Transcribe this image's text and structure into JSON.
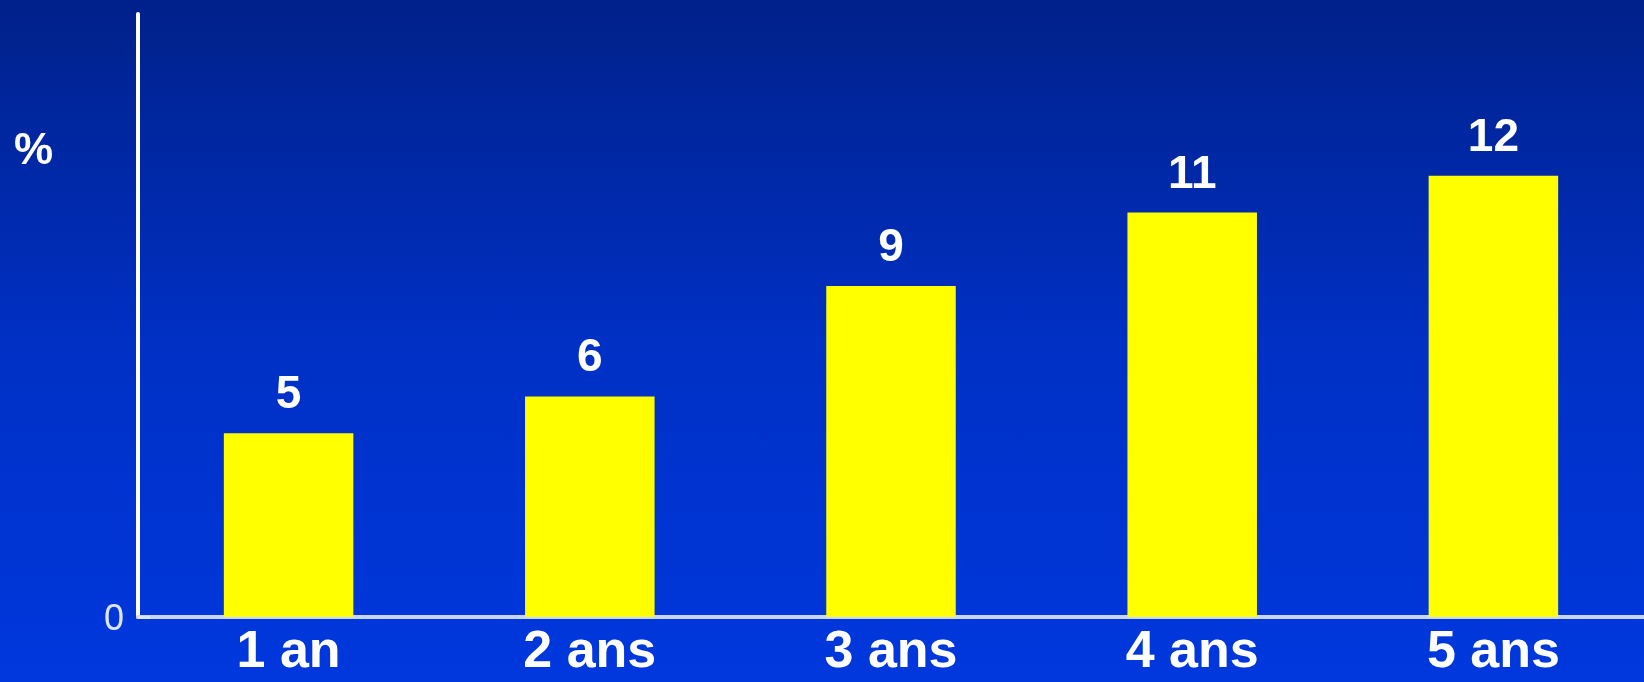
{
  "chart_data": {
    "type": "bar",
    "ylabel": "%",
    "categories": [
      "1 an",
      "2 ans",
      "3 ans",
      "4 ans",
      "5 ans"
    ],
    "values": [
      5,
      6,
      9,
      11,
      12
    ],
    "color": "#ffff00",
    "ylim": [
      0,
      16.4
    ],
    "data_labels": true,
    "annotations": [
      "0"
    ]
  }
}
